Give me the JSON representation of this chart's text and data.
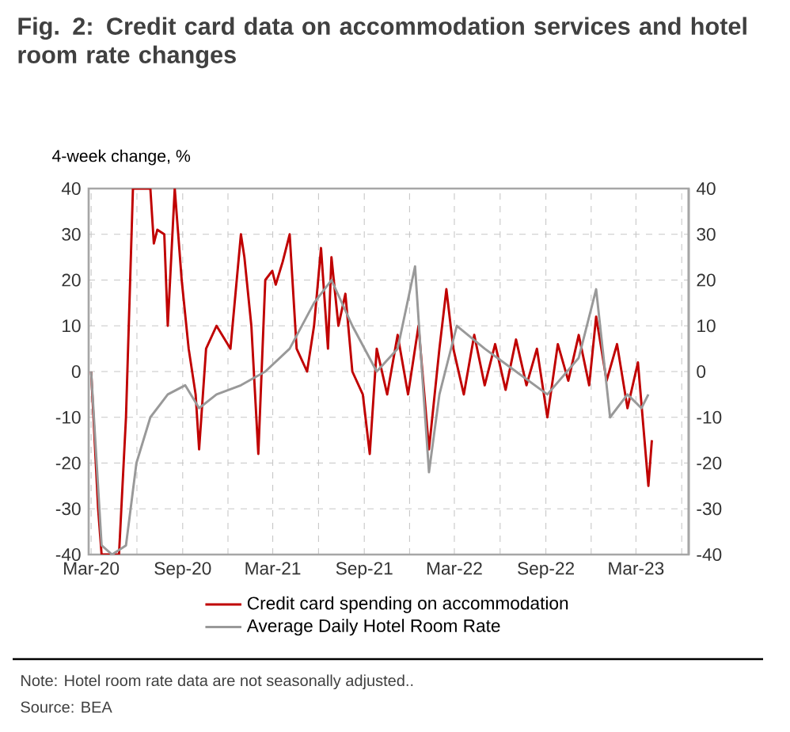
{
  "chart_data": {
    "type": "line",
    "title": "Fig. 2: Credit card data on accommodation services and hotel room rate changes",
    "ylabel": "4-week change, %",
    "annotations": [
      "Note: Hotel room rate data are not seasonally adjusted..",
      "Source: BEA"
    ],
    "xlim": [
      "2020-02-25",
      "2023-06-15"
    ],
    "xticks": [
      {
        "value": "2020-03-01",
        "label": "Mar-20"
      },
      {
        "value": "2020-06-01",
        "label": null
      },
      {
        "value": "2020-09-01",
        "label": "Sep-20"
      },
      {
        "value": "2020-12-01",
        "label": null
      },
      {
        "value": "2021-03-01",
        "label": "Mar-21"
      },
      {
        "value": "2021-06-01",
        "label": null
      },
      {
        "value": "2021-09-01",
        "label": "Sep-21"
      },
      {
        "value": "2021-12-01",
        "label": null
      },
      {
        "value": "2022-03-01",
        "label": "Mar-22"
      },
      {
        "value": "2022-06-01",
        "label": null
      },
      {
        "value": "2022-09-01",
        "label": "Sep-22"
      },
      {
        "value": "2022-12-01",
        "label": null
      },
      {
        "value": "2023-03-01",
        "label": "Mar-23"
      },
      {
        "value": "2023-06-01",
        "label": null
      }
    ],
    "ylim": [
      -40,
      40
    ],
    "yticks": [
      -40,
      -30,
      -20,
      -10,
      0,
      10,
      20,
      30,
      40
    ],
    "y2lim": [
      -40,
      40
    ],
    "y2ticks": [
      -40,
      -30,
      -20,
      -10,
      0,
      10,
      20,
      30,
      40
    ],
    "grid": true,
    "legend": "bottom",
    "marker": "none",
    "line_style": "solid",
    "series": [
      {
        "name": "Credit card spending on accommodation",
        "color": "#c00000",
        "x": [
          "2020-03-01",
          "2020-03-15",
          "2020-03-22",
          "2020-04-26",
          "2020-05-10",
          "2020-05-24",
          "2020-06-28",
          "2020-07-05",
          "2020-07-12",
          "2020-07-26",
          "2020-08-02",
          "2020-08-16",
          "2020-08-30",
          "2020-09-13",
          "2020-09-27",
          "2020-10-04",
          "2020-10-18",
          "2020-11-08",
          "2020-12-06",
          "2020-12-27",
          "2021-01-03",
          "2021-01-17",
          "2021-01-31",
          "2021-02-14",
          "2021-02-28",
          "2021-03-07",
          "2021-03-21",
          "2021-04-04",
          "2021-04-18",
          "2021-05-09",
          "2021-05-23",
          "2021-06-06",
          "2021-06-20",
          "2021-06-27",
          "2021-07-11",
          "2021-07-25",
          "2021-08-08",
          "2021-08-29",
          "2021-09-12",
          "2021-09-26",
          "2021-10-17",
          "2021-11-07",
          "2021-11-28",
          "2021-12-19",
          "2022-01-09",
          "2022-01-30",
          "2022-02-13",
          "2022-02-27",
          "2022-03-20",
          "2022-04-10",
          "2022-05-01",
          "2022-05-22",
          "2022-06-12",
          "2022-07-03",
          "2022-07-24",
          "2022-08-14",
          "2022-09-04",
          "2022-09-25",
          "2022-10-16",
          "2022-11-06",
          "2022-11-27",
          "2022-12-11",
          "2023-01-01",
          "2023-01-22",
          "2023-02-12",
          "2023-03-05",
          "2023-03-26",
          "2023-04-02"
        ],
        "values": [
          0,
          -30,
          -40,
          -40,
          -10,
          40,
          40,
          28,
          31,
          30,
          10,
          40,
          20,
          5,
          -5,
          -17,
          5,
          10,
          5,
          30,
          25,
          10,
          -18,
          20,
          22,
          19,
          24,
          30,
          5,
          0,
          10,
          27,
          5,
          25,
          10,
          17,
          0,
          -5,
          -18,
          5,
          -5,
          8,
          -5,
          10,
          -17,
          5,
          18,
          5,
          -5,
          8,
          -3,
          6,
          -4,
          7,
          -3,
          5,
          -10,
          6,
          -2,
          8,
          -3,
          12,
          -2,
          6,
          -8,
          2,
          -25,
          -15
        ]
      },
      {
        "name": "Average Daily Hotel Room Rate",
        "color": "#999999",
        "x": [
          "2020-03-01",
          "2020-03-22",
          "2020-04-12",
          "2020-05-10",
          "2020-05-31",
          "2020-06-28",
          "2020-08-02",
          "2020-09-06",
          "2020-10-04",
          "2020-11-08",
          "2020-12-27",
          "2021-02-14",
          "2021-04-04",
          "2021-05-23",
          "2021-06-27",
          "2021-08-08",
          "2021-09-26",
          "2021-11-07",
          "2021-12-12",
          "2021-12-26",
          "2022-01-09",
          "2022-01-30",
          "2022-03-06",
          "2022-05-01",
          "2022-07-03",
          "2022-09-04",
          "2022-11-06",
          "2022-12-11",
          "2023-01-08",
          "2023-02-12",
          "2023-03-12",
          "2023-03-26"
        ],
        "values": [
          0,
          -38,
          -40,
          -38,
          -20,
          -10,
          -5,
          -3,
          -8,
          -5,
          -3,
          0,
          5,
          15,
          20,
          10,
          0,
          5,
          23,
          0,
          -22,
          -5,
          10,
          5,
          0,
          -5,
          3,
          18,
          -10,
          -5,
          -8,
          -5
        ]
      }
    ]
  }
}
